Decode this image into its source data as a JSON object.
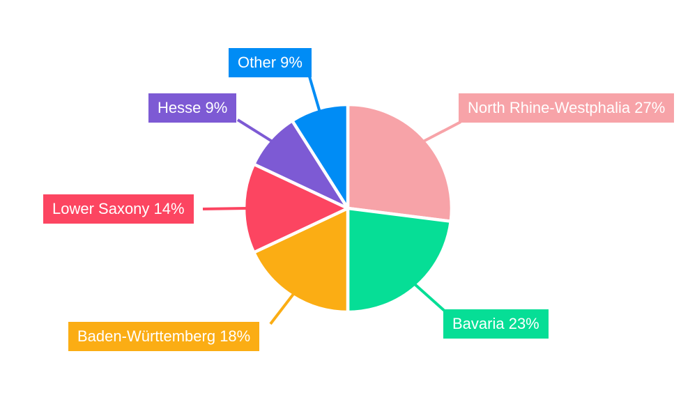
{
  "chart_data": {
    "type": "pie",
    "title": "",
    "background": "#ffffff",
    "separator_color": "#ffffff",
    "label_text_color": "#ffffff",
    "start_angle_deg": 0,
    "direction": "clockwise",
    "legend_position": "none",
    "label_style": "external callout boxes with leader lines",
    "slices": [
      {
        "label": "North Rhine-Westphalia",
        "value": 27,
        "unit": "%",
        "color": "#F7A3A8",
        "label_text": "North Rhine-Westphalia 27%"
      },
      {
        "label": "Bavaria",
        "value": 23,
        "unit": "%",
        "color": "#06DE96",
        "label_text": "Bavaria 23%"
      },
      {
        "label": "Baden-Württemberg",
        "value": 18,
        "unit": "%",
        "color": "#FBAD14",
        "label_text": "Baden-Württemberg 18%"
      },
      {
        "label": "Lower Saxony",
        "value": 14,
        "unit": "%",
        "color": "#FC4561",
        "label_text": "Lower Saxony 14%"
      },
      {
        "label": "Hesse",
        "value": 9,
        "unit": "%",
        "color": "#7D5AD4",
        "label_text": "Hesse 9%"
      },
      {
        "label": "Other",
        "value": 9,
        "unit": "%",
        "color": "#008CF5",
        "label_text": "Other 9%"
      }
    ]
  }
}
